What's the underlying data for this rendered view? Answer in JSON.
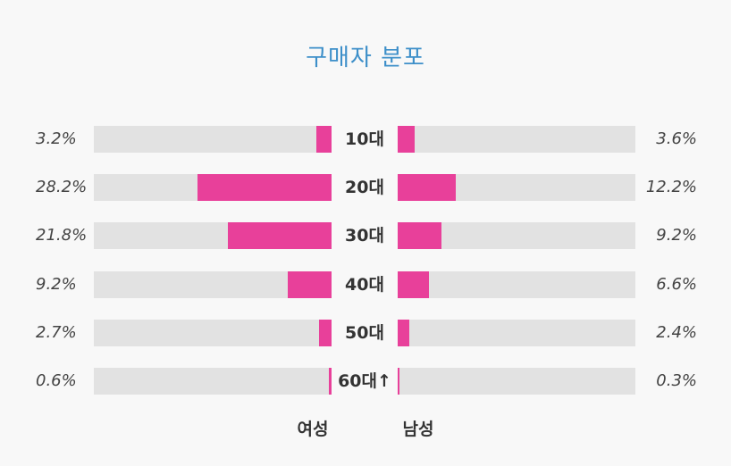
{
  "chart_data": {
    "type": "bar",
    "title": "구매자 분포",
    "categories": [
      "10대",
      "20대",
      "30대",
      "40대",
      "50대",
      "60대↑"
    ],
    "series": [
      {
        "name": "여성",
        "values": [
          3.2,
          28.2,
          21.8,
          9.2,
          2.7,
          0.6
        ],
        "labels": [
          "3.2%",
          "28.2%",
          "21.8%",
          "9.2%",
          "2.7%",
          "0.6%"
        ]
      },
      {
        "name": "남성",
        "values": [
          3.6,
          12.2,
          9.2,
          6.6,
          2.4,
          0.3
        ],
        "labels": [
          "3.6%",
          "12.2%",
          "9.2%",
          "6.6%",
          "2.4%",
          "0.3%"
        ]
      }
    ],
    "xlim": [
      0,
      50
    ],
    "colors": {
      "bar": "#e8409a",
      "track": "#e2e2e2",
      "title": "#3d8fc9"
    },
    "grid": false
  }
}
